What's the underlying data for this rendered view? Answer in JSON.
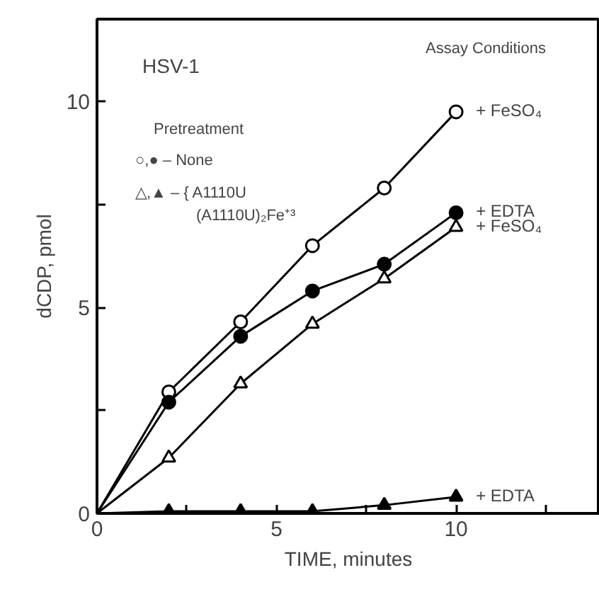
{
  "chart_data": {
    "type": "line",
    "xlabel": "TIME, minutes",
    "ylabel": "dCDP, pmol",
    "x": [
      0,
      2,
      4,
      6,
      8,
      10
    ],
    "xlim": [
      0,
      14
    ],
    "ylim": [
      0,
      12
    ],
    "xticks": [
      0,
      {
        "value": 2.5,
        "label": null
      },
      5,
      {
        "value": 7.5,
        "label": null
      },
      10,
      {
        "value": 12.5,
        "label": null
      }
    ],
    "yticks": [
      0,
      {
        "value": 2.5,
        "label": null
      },
      5,
      {
        "value": 7.5,
        "label": null
      },
      10
    ],
    "grid": false,
    "series": [
      {
        "name": "+ FeSO₄",
        "color": "#000000",
        "marker": "circle",
        "values": [
          0,
          2.95,
          4.65,
          6.5,
          7.9,
          9.75
        ]
      },
      {
        "name": "+ EDTA",
        "color": "#000000",
        "marker": "circle",
        "values": [
          0,
          2.7,
          4.3,
          5.4,
          6.05,
          7.3
        ]
      },
      {
        "name": "+ FeSO₄",
        "color": "#000000",
        "marker": "triangle",
        "values": [
          0,
          1.35,
          3.15,
          4.6,
          5.7,
          6.95
        ]
      },
      {
        "name": "+ EDTA",
        "color": "#000000",
        "marker": "triangle",
        "values": [
          0,
          0.05,
          0.05,
          0.05,
          0.2,
          0.4
        ]
      }
    ],
    "annotations": [
      "HSV-1",
      "Assay Conditions",
      "Pretreatment",
      "○,● – None",
      "△,▲ – { A1110U",
      "(A1110U)₂Fe⁺³"
    ]
  }
}
